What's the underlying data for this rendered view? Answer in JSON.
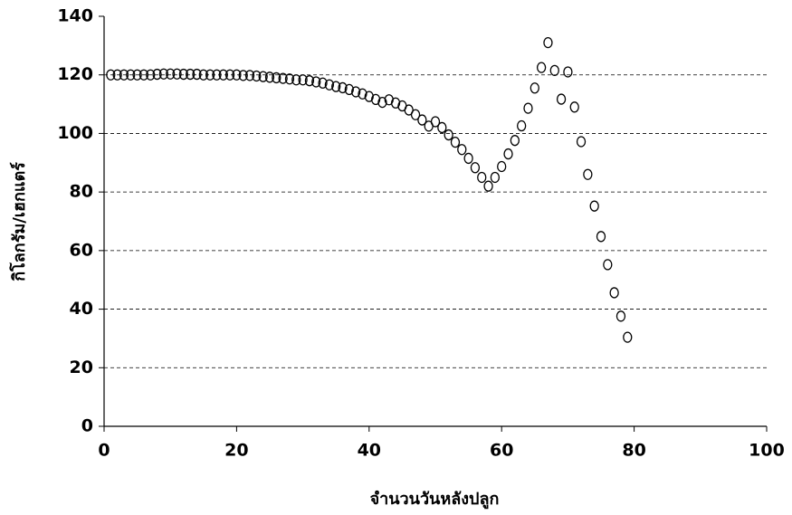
{
  "chart_data": {
    "type": "scatter",
    "x_label": "จำนวนวันหลังปลูก",
    "y_label": "กิโลกรัม/เฮกแตร์",
    "x": [
      1,
      2,
      3,
      4,
      5,
      6,
      7,
      8,
      9,
      10,
      11,
      12,
      13,
      14,
      15,
      16,
      17,
      18,
      19,
      20,
      21,
      22,
      23,
      24,
      25,
      26,
      27,
      28,
      29,
      30,
      31,
      32,
      33,
      34,
      35,
      36,
      37,
      38,
      39,
      40,
      41,
      42,
      43,
      44,
      45,
      46,
      47,
      48,
      49,
      50,
      51,
      52,
      53,
      54,
      55,
      56,
      57,
      58,
      59,
      60,
      61,
      62,
      63,
      64,
      65,
      66,
      67,
      68,
      69,
      70,
      71,
      72,
      73,
      74,
      75,
      76,
      77,
      78,
      79
    ],
    "values": [
      120,
      120,
      120,
      120,
      120,
      120,
      120,
      120.2,
      120.3,
      120.3,
      120.3,
      120.2,
      120.2,
      120.2,
      120,
      120,
      120,
      120,
      120,
      120,
      119.8,
      119.8,
      119.6,
      119.4,
      119.2,
      119,
      118.8,
      118.6,
      118.3,
      118.3,
      118,
      117.6,
      117.2,
      116.6,
      116,
      115.6,
      115,
      114.2,
      113.5,
      112.6,
      111.6,
      110.6,
      111.5,
      110.4,
      109.4,
      108,
      106.4,
      104.6,
      102.5,
      104,
      102,
      99.5,
      97,
      94.5,
      91.5,
      88.3,
      85,
      82,
      85,
      88.7,
      93,
      97.6,
      102.6,
      108.6,
      115.5,
      122.5,
      131,
      121.5,
      111.7,
      121,
      109,
      97.2,
      86,
      75.2,
      64.8,
      55.2,
      45.6,
      37.6,
      30.4
    ],
    "marker_color": "#000000",
    "xlim": [
      0,
      100
    ],
    "xticks": [
      0,
      20,
      40,
      60,
      80,
      100
    ],
    "ylim": [
      0,
      140
    ],
    "yticks": [
      0,
      20,
      40,
      60,
      80,
      100,
      120,
      140
    ],
    "grid": true
  }
}
